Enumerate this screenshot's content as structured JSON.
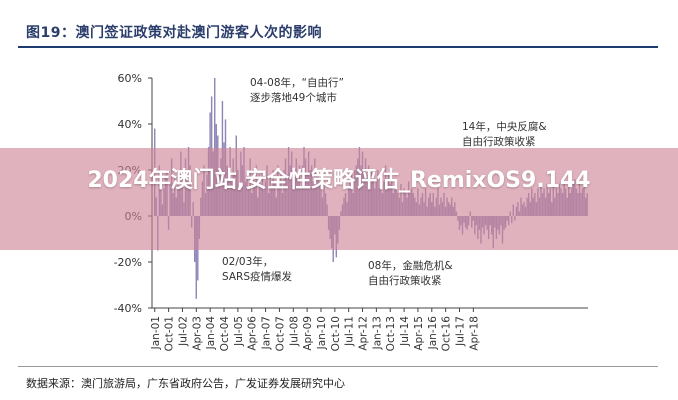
{
  "figure_title": "图19：澳门签证政策对赴澳门游客人次的影响",
  "source_note": "数据来源：澳门旅游局，广东省政府公告，广发证券发展研究中心",
  "overlay_title": "2024年澳门站,安全性策略评估_RemixOS9.144",
  "annotations": {
    "a1_line1": "04-08年，“自由行”",
    "a1_line2": "逐步落地49个城市",
    "a2_line1": "14年，中央反腐&",
    "a2_line2": "自由行政策收紧",
    "a3_line1": "02/03年，",
    "a3_line2": "SARS疫情爆发",
    "a4_line1": "08年，金融危机&",
    "a4_line2": "自由行政策收紧"
  },
  "colors": {
    "bar": "#8e86b6",
    "axis": "#444444",
    "title": "#2b3e6b",
    "overlay": "#cd8296"
  },
  "chart_data": {
    "type": "bar",
    "title": "",
    "xlabel": "",
    "ylabel": "",
    "ylim": [
      -40,
      60
    ],
    "yticks": [
      "60%",
      "40%",
      "20%",
      "0%",
      "-20%",
      "-40%"
    ],
    "ytick_values": [
      60,
      40,
      20,
      0,
      -20,
      -40
    ],
    "xticks": [
      "Jan-01",
      "Oct-01",
      "Jul-02",
      "Apr-03",
      "Jan-04",
      "Oct-04",
      "Jul-05",
      "Apr-06",
      "Jan-07",
      "Oct-07",
      "Jul-08",
      "Apr-09",
      "Jan-10",
      "Oct-10",
      "Jul-11",
      "Apr-12",
      "Jan-13",
      "Oct-13",
      "Jul-14",
      "Apr-15",
      "Jan-16",
      "Oct-16",
      "Jul-17",
      "Apr-18"
    ],
    "start_month": "Jan-01",
    "grid": false,
    "series": [
      {
        "values": [
          38,
          8,
          -15,
          22,
          15,
          5,
          12,
          18,
          20,
          -6,
          14,
          25,
          10,
          18,
          8,
          20,
          12,
          28,
          14,
          6,
          25,
          16,
          30,
          22,
          -5,
          6,
          -20,
          -36,
          -28,
          -10,
          8,
          15,
          22,
          10,
          18,
          30,
          45,
          52,
          28,
          60,
          40,
          35,
          18,
          25,
          50,
          32,
          42,
          22,
          20,
          30,
          15,
          25,
          18,
          35,
          20,
          12,
          28,
          22,
          30,
          15,
          18,
          12,
          25,
          10,
          20,
          15,
          22,
          8,
          18,
          14,
          20,
          12,
          15,
          22,
          10,
          18,
          12,
          20,
          15,
          8,
          22,
          12,
          18,
          10,
          20,
          25,
          18,
          30,
          22,
          28,
          15,
          20,
          25,
          18,
          22,
          12,
          22,
          30,
          25,
          18,
          28,
          20,
          22,
          15,
          25,
          18,
          20,
          15,
          12,
          8,
          15,
          10,
          5,
          -6,
          -10,
          -14,
          -20,
          -8,
          -18,
          -12,
          -6,
          2,
          5,
          8,
          10,
          6,
          12,
          15,
          18,
          10,
          20,
          22,
          25,
          30,
          22,
          28,
          20,
          25,
          18,
          22,
          15,
          20,
          18,
          12,
          15,
          20,
          12,
          18,
          10,
          15,
          22,
          12,
          18,
          14,
          20,
          10,
          12,
          15,
          10,
          8,
          14,
          6,
          12,
          10,
          8,
          15,
          10,
          12,
          10,
          8,
          6,
          12,
          5,
          8,
          10,
          6,
          12,
          4,
          8,
          10,
          6,
          10,
          4,
          8,
          12,
          5,
          8,
          6,
          10,
          4,
          8,
          6,
          5,
          8,
          4,
          6,
          2,
          -2,
          -6,
          -4,
          -8,
          -3,
          -5,
          -6,
          -4,
          2,
          -5,
          -2,
          -8,
          -4,
          -10,
          -6,
          -12,
          -5,
          -8,
          -4,
          -6,
          -10,
          -4,
          -8,
          -14,
          -5,
          -10,
          -6,
          -8,
          -4,
          -12,
          -6,
          -5,
          -2,
          -4,
          2,
          -3,
          5,
          -2,
          4,
          6,
          2,
          8,
          5,
          6,
          4,
          8,
          10,
          6,
          12,
          8,
          10,
          6,
          12,
          8,
          14,
          10,
          12,
          8,
          14,
          10,
          12,
          6,
          15,
          8,
          12,
          10,
          14,
          12,
          10,
          14,
          12,
          8,
          15,
          10,
          12,
          14,
          16,
          12,
          10,
          14,
          10,
          12,
          16,
          8,
          10
        ]
      }
    ]
  }
}
